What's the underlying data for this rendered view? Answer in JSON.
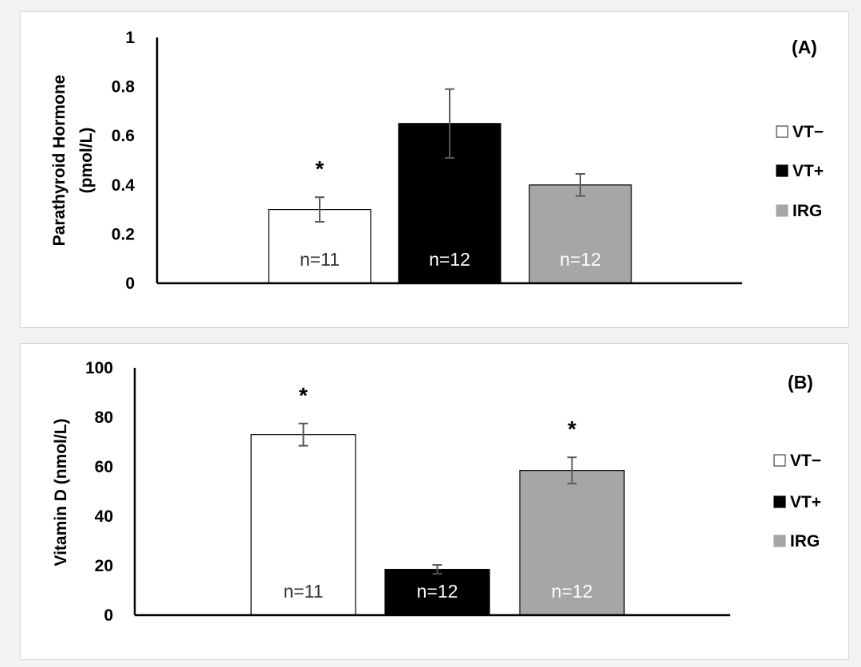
{
  "chart_data": [
    {
      "type": "bar",
      "panel_label": "(A)",
      "ylabel": [
        "Parathyroid Hormone",
        "(pmol/L)"
      ],
      "ylim": [
        0,
        1
      ],
      "yticks": [
        0,
        0.2,
        0.4,
        0.6,
        0.8,
        1
      ],
      "ytick_labels": [
        "0",
        "0.2",
        "0.4",
        "0.6",
        "0.8",
        "1"
      ],
      "categories": [
        "VT−",
        "VT+",
        "IRG"
      ],
      "values": [
        0.3,
        0.65,
        0.4
      ],
      "error": [
        0.05,
        0.14,
        0.045
      ],
      "n_labels": [
        "n=11",
        "n=12",
        "n=12"
      ],
      "significance": [
        "*",
        "",
        ""
      ],
      "colors": [
        "#ffffff",
        "#000000",
        "#a6a6a6"
      ],
      "legend": [
        "VT−",
        "VT+",
        "IRG"
      ],
      "legend_position": "right",
      "grid": false
    },
    {
      "type": "bar",
      "panel_label": "(B)",
      "ylabel": [
        "Vitamin D (nmol/L)"
      ],
      "ylim": [
        0,
        100
      ],
      "yticks": [
        0,
        20,
        40,
        60,
        80,
        100
      ],
      "ytick_labels": [
        "0",
        "20",
        "40",
        "60",
        "80",
        "100"
      ],
      "categories": [
        "VT−",
        "VT+",
        "IRG"
      ],
      "values": [
        73,
        18.5,
        58.5
      ],
      "error": [
        4.5,
        1.8,
        5.3
      ],
      "n_labels": [
        "n=11",
        "n=12",
        "n=12"
      ],
      "significance": [
        "*",
        "",
        "*"
      ],
      "colors": [
        "#ffffff",
        "#000000",
        "#a6a6a6"
      ],
      "legend": [
        "VT−",
        "VT+",
        "IRG"
      ],
      "legend_position": "right",
      "grid": false
    }
  ]
}
